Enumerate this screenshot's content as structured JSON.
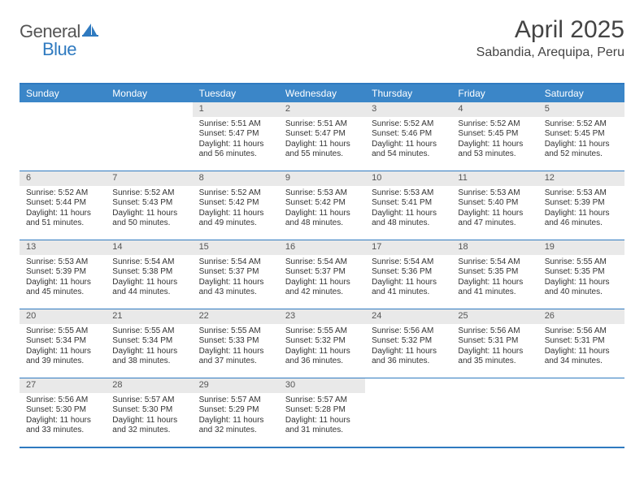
{
  "logo": {
    "text1": "General",
    "text2": "Blue"
  },
  "title": "April 2025",
  "location": "Sabandia, Arequipa, Peru",
  "colors": {
    "header_bg": "#3b86c8",
    "border": "#2f7ac0",
    "daynum_bg": "#e9e9e9",
    "text": "#333333",
    "title_text": "#444444"
  },
  "layout": {
    "cols": 7,
    "rows": 5,
    "first_day_col": 2
  },
  "days_of_week": [
    "Sunday",
    "Monday",
    "Tuesday",
    "Wednesday",
    "Thursday",
    "Friday",
    "Saturday"
  ],
  "days": [
    {
      "n": 1,
      "sr": "5:51 AM",
      "ss": "5:47 PM",
      "dl": "11 hours and 56 minutes."
    },
    {
      "n": 2,
      "sr": "5:51 AM",
      "ss": "5:47 PM",
      "dl": "11 hours and 55 minutes."
    },
    {
      "n": 3,
      "sr": "5:52 AM",
      "ss": "5:46 PM",
      "dl": "11 hours and 54 minutes."
    },
    {
      "n": 4,
      "sr": "5:52 AM",
      "ss": "5:45 PM",
      "dl": "11 hours and 53 minutes."
    },
    {
      "n": 5,
      "sr": "5:52 AM",
      "ss": "5:45 PM",
      "dl": "11 hours and 52 minutes."
    },
    {
      "n": 6,
      "sr": "5:52 AM",
      "ss": "5:44 PM",
      "dl": "11 hours and 51 minutes."
    },
    {
      "n": 7,
      "sr": "5:52 AM",
      "ss": "5:43 PM",
      "dl": "11 hours and 50 minutes."
    },
    {
      "n": 8,
      "sr": "5:52 AM",
      "ss": "5:42 PM",
      "dl": "11 hours and 49 minutes."
    },
    {
      "n": 9,
      "sr": "5:53 AM",
      "ss": "5:42 PM",
      "dl": "11 hours and 48 minutes."
    },
    {
      "n": 10,
      "sr": "5:53 AM",
      "ss": "5:41 PM",
      "dl": "11 hours and 48 minutes."
    },
    {
      "n": 11,
      "sr": "5:53 AM",
      "ss": "5:40 PM",
      "dl": "11 hours and 47 minutes."
    },
    {
      "n": 12,
      "sr": "5:53 AM",
      "ss": "5:39 PM",
      "dl": "11 hours and 46 minutes."
    },
    {
      "n": 13,
      "sr": "5:53 AM",
      "ss": "5:39 PM",
      "dl": "11 hours and 45 minutes."
    },
    {
      "n": 14,
      "sr": "5:54 AM",
      "ss": "5:38 PM",
      "dl": "11 hours and 44 minutes."
    },
    {
      "n": 15,
      "sr": "5:54 AM",
      "ss": "5:37 PM",
      "dl": "11 hours and 43 minutes."
    },
    {
      "n": 16,
      "sr": "5:54 AM",
      "ss": "5:37 PM",
      "dl": "11 hours and 42 minutes."
    },
    {
      "n": 17,
      "sr": "5:54 AM",
      "ss": "5:36 PM",
      "dl": "11 hours and 41 minutes."
    },
    {
      "n": 18,
      "sr": "5:54 AM",
      "ss": "5:35 PM",
      "dl": "11 hours and 41 minutes."
    },
    {
      "n": 19,
      "sr": "5:55 AM",
      "ss": "5:35 PM",
      "dl": "11 hours and 40 minutes."
    },
    {
      "n": 20,
      "sr": "5:55 AM",
      "ss": "5:34 PM",
      "dl": "11 hours and 39 minutes."
    },
    {
      "n": 21,
      "sr": "5:55 AM",
      "ss": "5:34 PM",
      "dl": "11 hours and 38 minutes."
    },
    {
      "n": 22,
      "sr": "5:55 AM",
      "ss": "5:33 PM",
      "dl": "11 hours and 37 minutes."
    },
    {
      "n": 23,
      "sr": "5:55 AM",
      "ss": "5:32 PM",
      "dl": "11 hours and 36 minutes."
    },
    {
      "n": 24,
      "sr": "5:56 AM",
      "ss": "5:32 PM",
      "dl": "11 hours and 36 minutes."
    },
    {
      "n": 25,
      "sr": "5:56 AM",
      "ss": "5:31 PM",
      "dl": "11 hours and 35 minutes."
    },
    {
      "n": 26,
      "sr": "5:56 AM",
      "ss": "5:31 PM",
      "dl": "11 hours and 34 minutes."
    },
    {
      "n": 27,
      "sr": "5:56 AM",
      "ss": "5:30 PM",
      "dl": "11 hours and 33 minutes."
    },
    {
      "n": 28,
      "sr": "5:57 AM",
      "ss": "5:30 PM",
      "dl": "11 hours and 32 minutes."
    },
    {
      "n": 29,
      "sr": "5:57 AM",
      "ss": "5:29 PM",
      "dl": "11 hours and 32 minutes."
    },
    {
      "n": 30,
      "sr": "5:57 AM",
      "ss": "5:28 PM",
      "dl": "11 hours and 31 minutes."
    }
  ],
  "labels": {
    "sunrise": "Sunrise:",
    "sunset": "Sunset:",
    "daylight": "Daylight:"
  }
}
